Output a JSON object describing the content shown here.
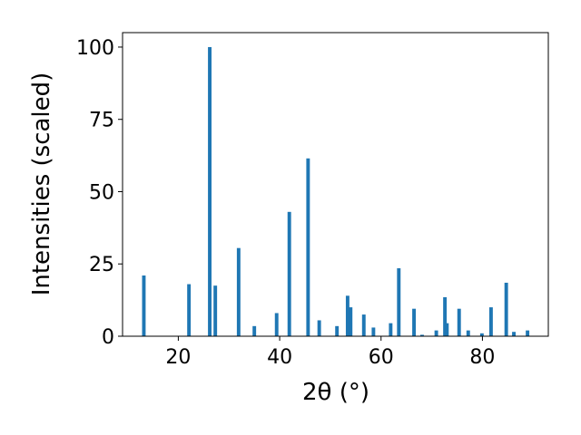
{
  "chart_data": {
    "type": "bar",
    "xlabel": "2θ (°)",
    "ylabel": "Intensities (scaled)",
    "xlim": [
      9,
      93
    ],
    "ylim": [
      0,
      105
    ],
    "grid": false,
    "legend": "none",
    "color": "#1f77b4",
    "x_ticks": [
      20,
      40,
      60,
      80
    ],
    "y_ticks": [
      0,
      25,
      50,
      75,
      100
    ],
    "x_tick_labels": [
      "20",
      "40",
      "60",
      "80"
    ],
    "y_tick_labels": [
      "0",
      "25",
      "50",
      "75",
      "100"
    ],
    "bar_width": 0.7,
    "points": [
      {
        "x": 13.2,
        "y": 21
      },
      {
        "x": 22.1,
        "y": 18
      },
      {
        "x": 26.2,
        "y": 100
      },
      {
        "x": 27.3,
        "y": 17.5
      },
      {
        "x": 31.9,
        "y": 30.5
      },
      {
        "x": 35.0,
        "y": 3.5
      },
      {
        "x": 39.4,
        "y": 8
      },
      {
        "x": 41.9,
        "y": 43
      },
      {
        "x": 45.6,
        "y": 61.5
      },
      {
        "x": 47.8,
        "y": 5.5
      },
      {
        "x": 51.3,
        "y": 3.5
      },
      {
        "x": 53.4,
        "y": 14
      },
      {
        "x": 54.0,
        "y": 10
      },
      {
        "x": 56.6,
        "y": 7.5
      },
      {
        "x": 58.5,
        "y": 3
      },
      {
        "x": 61.9,
        "y": 4.5
      },
      {
        "x": 63.5,
        "y": 23.5
      },
      {
        "x": 66.5,
        "y": 9.5
      },
      {
        "x": 68.1,
        "y": 0.5
      },
      {
        "x": 70.9,
        "y": 2
      },
      {
        "x": 72.6,
        "y": 13.5
      },
      {
        "x": 73.0,
        "y": 4.5
      },
      {
        "x": 75.4,
        "y": 9.5
      },
      {
        "x": 77.2,
        "y": 2
      },
      {
        "x": 79.9,
        "y": 1
      },
      {
        "x": 81.7,
        "y": 10
      },
      {
        "x": 84.7,
        "y": 18.5
      },
      {
        "x": 86.2,
        "y": 1.5
      },
      {
        "x": 88.9,
        "y": 2
      }
    ]
  }
}
